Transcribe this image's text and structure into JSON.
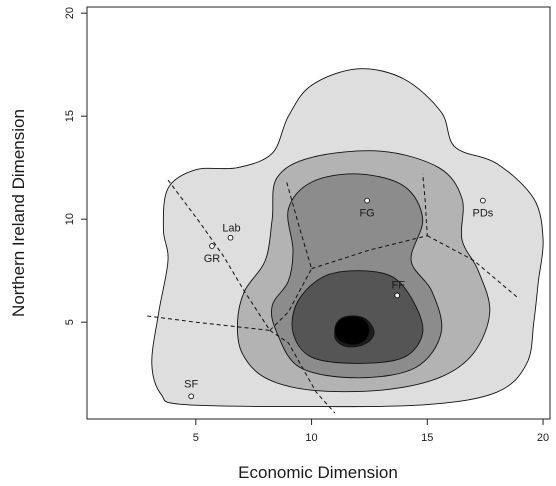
{
  "chart_data": {
    "type": "contour",
    "xlabel": "Economic Dimension",
    "ylabel": "Northern Ireland Dimension",
    "xlim": [
      0.3,
      20.3
    ],
    "ylim": [
      0.3,
      20.3
    ],
    "x_ticks": [
      5,
      10,
      15,
      20
    ],
    "y_ticks": [
      5,
      10,
      15,
      20
    ],
    "grid": false,
    "density_contours": [
      {
        "level": 1,
        "color": "#dedede",
        "points": [
          [
            4.5,
            1.0
          ],
          [
            3.5,
            1.5
          ],
          [
            3.1,
            3.0
          ],
          [
            3.4,
            5.5
          ],
          [
            3.8,
            8.0
          ],
          [
            3.6,
            9.5
          ],
          [
            3.8,
            11.5
          ],
          [
            5.0,
            12.4
          ],
          [
            6.8,
            12.5
          ],
          [
            8.3,
            13.2
          ],
          [
            9.0,
            15.0
          ],
          [
            10.0,
            16.5
          ],
          [
            12.0,
            17.3
          ],
          [
            14.0,
            16.8
          ],
          [
            15.6,
            15.2
          ],
          [
            16.2,
            13.5
          ],
          [
            18.0,
            12.7
          ],
          [
            19.6,
            11.0
          ],
          [
            20.0,
            9.0
          ],
          [
            19.8,
            7.0
          ],
          [
            19.6,
            5.0
          ],
          [
            19.3,
            3.0
          ],
          [
            18.0,
            1.6
          ],
          [
            15.0,
            1.0
          ],
          [
            10.0,
            0.9
          ]
        ]
      },
      {
        "level": 2,
        "color": "#b3b3b3",
        "points": [
          [
            7.0,
            3.5
          ],
          [
            8.0,
            2.3
          ],
          [
            10.0,
            1.7
          ],
          [
            13.0,
            1.7
          ],
          [
            15.5,
            2.3
          ],
          [
            17.0,
            3.5
          ],
          [
            17.7,
            5.5
          ],
          [
            17.2,
            7.5
          ],
          [
            16.5,
            9.0
          ],
          [
            16.5,
            11.0
          ],
          [
            15.5,
            12.5
          ],
          [
            13.0,
            13.3
          ],
          [
            10.0,
            13.0
          ],
          [
            8.5,
            12.0
          ],
          [
            8.3,
            10.0
          ],
          [
            8.0,
            8.0
          ],
          [
            7.1,
            6.5
          ],
          [
            6.8,
            5.0
          ]
        ]
      },
      {
        "level": 3,
        "color": "#8c8c8c",
        "points": [
          [
            8.5,
            4.5
          ],
          [
            9.5,
            2.8
          ],
          [
            12.0,
            2.3
          ],
          [
            14.5,
            2.8
          ],
          [
            15.6,
            4.5
          ],
          [
            15.2,
            6.5
          ],
          [
            14.3,
            8.0
          ],
          [
            14.8,
            10.0
          ],
          [
            14.0,
            11.6
          ],
          [
            12.0,
            12.2
          ],
          [
            10.0,
            11.8
          ],
          [
            9.0,
            10.5
          ],
          [
            9.2,
            8.5
          ],
          [
            9.0,
            7.0
          ],
          [
            8.3,
            5.8
          ]
        ]
      },
      {
        "level": 4,
        "color": "#555555",
        "points": [
          [
            9.2,
            4.5
          ],
          [
            10.0,
            3.3
          ],
          [
            12.0,
            3.0
          ],
          [
            14.0,
            3.3
          ],
          [
            14.8,
            4.5
          ],
          [
            14.4,
            6.0
          ],
          [
            13.5,
            7.2
          ],
          [
            12.0,
            7.5
          ],
          [
            10.5,
            7.2
          ],
          [
            9.4,
            6.0
          ]
        ]
      },
      {
        "level": 5,
        "color": "#1e1e1e",
        "points": [
          [
            11.0,
            4.3
          ],
          [
            11.3,
            3.9
          ],
          [
            11.8,
            3.8
          ],
          [
            12.4,
            4.0
          ],
          [
            12.7,
            4.5
          ],
          [
            12.4,
            5.1
          ],
          [
            11.8,
            5.3
          ],
          [
            11.2,
            5.1
          ]
        ]
      },
      {
        "level": 6,
        "color": "#000000",
        "points": [
          [
            11.0,
            4.6
          ],
          [
            11.2,
            4.1
          ],
          [
            11.8,
            3.9
          ],
          [
            12.3,
            4.1
          ],
          [
            12.5,
            4.6
          ],
          [
            12.3,
            5.1
          ],
          [
            11.8,
            5.3
          ],
          [
            11.2,
            5.1
          ]
        ]
      }
    ],
    "boundaries": [
      [
        [
          3.8,
          11.9
        ],
        [
          5.2,
          9.8
        ],
        [
          6.2,
          8.2
        ],
        [
          7.1,
          6.5
        ],
        [
          8.2,
          4.6
        ]
      ],
      [
        [
          2.9,
          5.3
        ],
        [
          5.0,
          5.0
        ],
        [
          8.2,
          4.6
        ]
      ],
      [
        [
          8.2,
          4.6
        ],
        [
          9.0,
          4.0
        ],
        [
          9.6,
          2.8
        ],
        [
          10.2,
          1.6
        ],
        [
          11.0,
          0.6
        ]
      ],
      [
        [
          8.2,
          4.6
        ],
        [
          9.0,
          5.5
        ],
        [
          10.0,
          7.6
        ],
        [
          9.5,
          9.5
        ],
        [
          8.9,
          11.9
        ]
      ],
      [
        [
          10.0,
          7.6
        ],
        [
          12.5,
          8.5
        ],
        [
          15.0,
          9.2
        ],
        [
          14.9,
          11.0
        ],
        [
          14.8,
          12.2
        ]
      ],
      [
        [
          15.0,
          9.2
        ],
        [
          17.0,
          8.0
        ],
        [
          18.9,
          6.2
        ]
      ]
    ],
    "parties": [
      {
        "label": "FG",
        "x": 12.4,
        "y": 10.9
      },
      {
        "label": "PDs",
        "x": 17.4,
        "y": 10.9
      },
      {
        "label": "Lab",
        "x": 6.5,
        "y": 9.1
      },
      {
        "label": "GR",
        "x": 5.7,
        "y": 8.7
      },
      {
        "label": "FF",
        "x": 13.7,
        "y": 6.3
      },
      {
        "label": "SF",
        "x": 4.8,
        "y": 1.4
      }
    ]
  }
}
